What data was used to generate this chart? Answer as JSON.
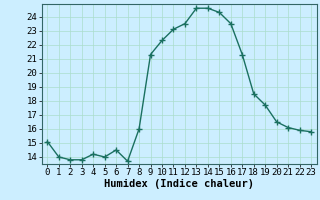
{
  "x": [
    0,
    1,
    2,
    3,
    4,
    5,
    6,
    7,
    8,
    9,
    10,
    11,
    12,
    13,
    14,
    15,
    16,
    17,
    18,
    19,
    20,
    21,
    22,
    23
  ],
  "y": [
    15.1,
    14.0,
    13.8,
    13.8,
    14.2,
    14.0,
    14.5,
    13.7,
    16.0,
    21.3,
    22.3,
    23.1,
    23.5,
    24.6,
    24.6,
    24.3,
    23.5,
    21.3,
    18.5,
    17.7,
    16.5,
    16.1,
    15.9,
    15.8
  ],
  "line_color": "#1a7060",
  "marker": "+",
  "marker_size": 4,
  "marker_lw": 1.0,
  "line_width": 1.0,
  "bg_color": "#cceeff",
  "grid_major_color": "#aaddcc",
  "grid_minor_color": "#bbdddd",
  "xlabel": "Humidex (Indice chaleur)",
  "ylim": [
    13.5,
    24.9
  ],
  "xlim": [
    -0.5,
    23.5
  ],
  "yticks": [
    14,
    15,
    16,
    17,
    18,
    19,
    20,
    21,
    22,
    23,
    24
  ],
  "xticks": [
    0,
    1,
    2,
    3,
    4,
    5,
    6,
    7,
    8,
    9,
    10,
    11,
    12,
    13,
    14,
    15,
    16,
    17,
    18,
    19,
    20,
    21,
    22,
    23
  ],
  "tick_fontsize": 6.5,
  "label_fontsize": 7.5,
  "spine_color": "#336666"
}
